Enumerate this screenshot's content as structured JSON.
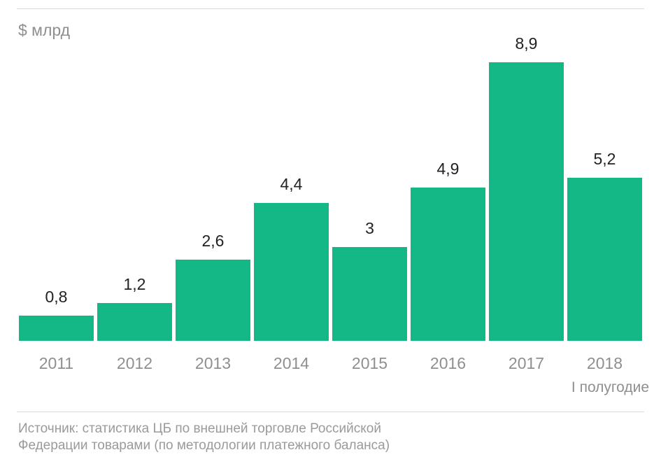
{
  "chart_data": {
    "type": "bar",
    "title": "",
    "unit_label": "$ млрд",
    "categories": [
      "2011",
      "2012",
      "2013",
      "2014",
      "2015",
      "2016",
      "2017",
      "2018"
    ],
    "values": [
      0.8,
      1.2,
      2.6,
      4.4,
      3,
      4.9,
      8.9,
      5.2
    ],
    "value_labels": [
      "0,8",
      "1,2",
      "2,6",
      "4,4",
      "3",
      "4,9",
      "8,9",
      "5,2"
    ],
    "xlabel": "",
    "ylabel": "$ млрд",
    "ylim": [
      0,
      9.5
    ],
    "grid": false,
    "legend": null,
    "bar_color": "#14b886",
    "annotations": [
      {
        "category": "2018",
        "text": "I полугодие"
      }
    ]
  },
  "header": {
    "unit": "$ млрд"
  },
  "note_2018": "I полугодие",
  "footer": {
    "source_line1": "Источник: статистика ЦБ по внешней торговле Российской",
    "source_line2": "Федерации товарами (по методологии платежного баланса)"
  }
}
